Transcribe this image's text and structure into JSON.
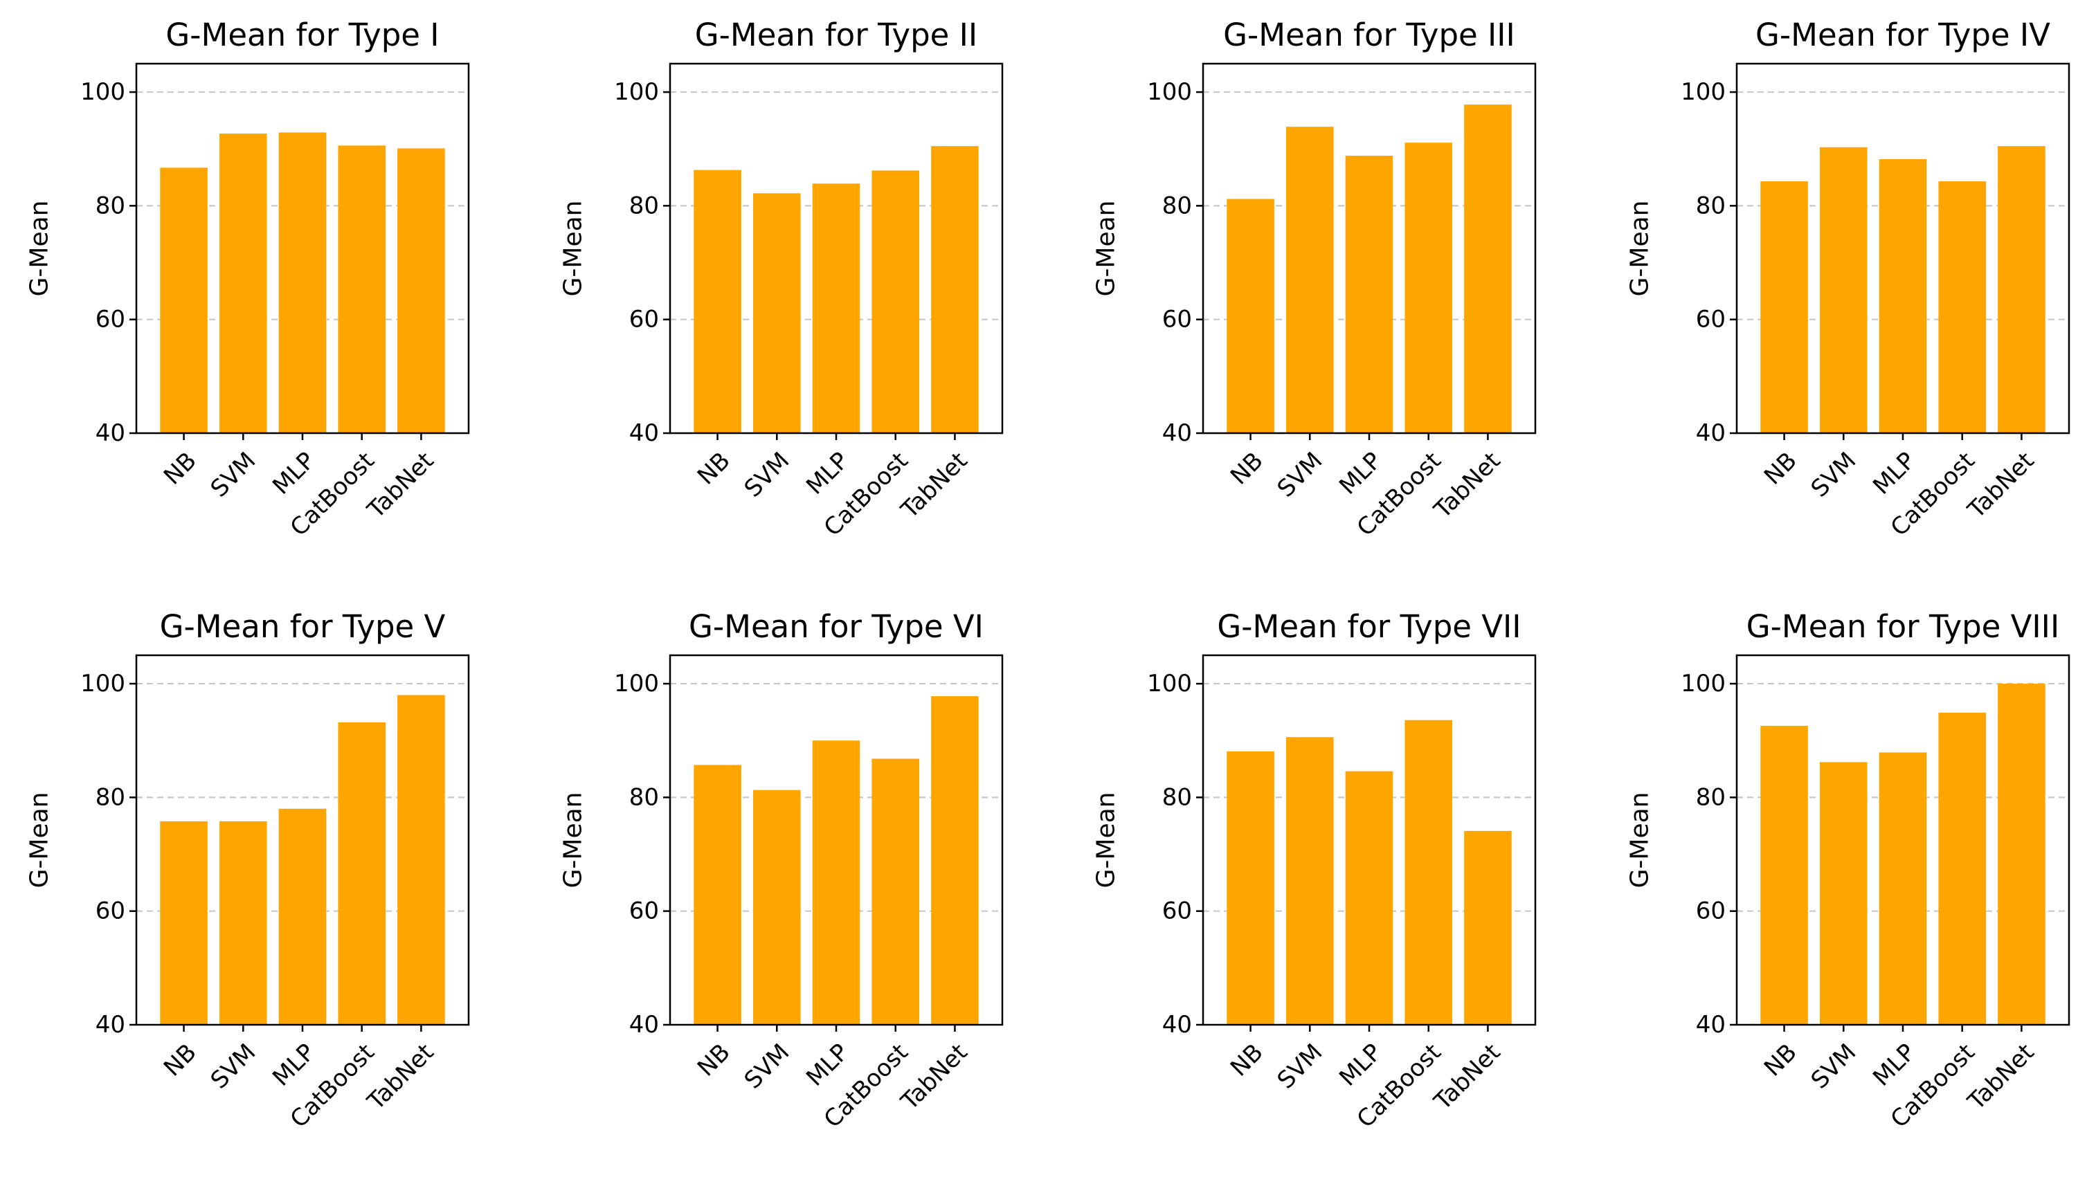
{
  "figure": {
    "style": {
      "bar_color": "#FFA500",
      "grid_color": "#c8c8c8",
      "axis_color": "#000000",
      "background": "#ffffff"
    }
  },
  "chart_data": [
    {
      "type": "bar",
      "title": "G-Mean for Type I",
      "xlabel": "",
      "ylabel": "G-Mean",
      "categories": [
        "NB",
        "SVM",
        "MLP",
        "CatBoost",
        "TabNet"
      ],
      "values": [
        86.7,
        92.7,
        92.9,
        90.6,
        90.1
      ],
      "ylim": [
        40,
        105
      ],
      "yticks": [
        40,
        60,
        80,
        100
      ],
      "grid": "y-dashed",
      "legend": "none"
    },
    {
      "type": "bar",
      "title": "G-Mean for Type II",
      "xlabel": "",
      "ylabel": "G-Mean",
      "categories": [
        "NB",
        "SVM",
        "MLP",
        "CatBoost",
        "TabNet"
      ],
      "values": [
        86.3,
        82.2,
        83.9,
        86.2,
        90.5
      ],
      "ylim": [
        40,
        105
      ],
      "yticks": [
        40,
        60,
        80,
        100
      ],
      "grid": "y-dashed",
      "legend": "none"
    },
    {
      "type": "bar",
      "title": "G-Mean for Type III",
      "xlabel": "",
      "ylabel": "G-Mean",
      "categories": [
        "NB",
        "SVM",
        "MLP",
        "CatBoost",
        "TabNet"
      ],
      "values": [
        81.2,
        93.9,
        88.8,
        91.1,
        97.8
      ],
      "ylim": [
        40,
        105
      ],
      "yticks": [
        40,
        60,
        80,
        100
      ],
      "grid": "y-dashed",
      "legend": "none"
    },
    {
      "type": "bar",
      "title": "G-Mean for Type IV",
      "xlabel": "",
      "ylabel": "G-Mean",
      "categories": [
        "NB",
        "SVM",
        "MLP",
        "CatBoost",
        "TabNet"
      ],
      "values": [
        84.3,
        90.3,
        88.2,
        84.3,
        90.5
      ],
      "ylim": [
        40,
        105
      ],
      "yticks": [
        40,
        60,
        80,
        100
      ],
      "grid": "y-dashed",
      "legend": "none"
    },
    {
      "type": "bar",
      "title": "G-Mean for Type V",
      "xlabel": "",
      "ylabel": "G-Mean",
      "categories": [
        "NB",
        "SVM",
        "MLP",
        "CatBoost",
        "TabNet"
      ],
      "values": [
        75.8,
        75.8,
        78.0,
        93.2,
        98.0
      ],
      "ylim": [
        40,
        105
      ],
      "yticks": [
        40,
        60,
        80,
        100
      ],
      "grid": "y-dashed",
      "legend": "none"
    },
    {
      "type": "bar",
      "title": "G-Mean for Type VI",
      "xlabel": "",
      "ylabel": "G-Mean",
      "categories": [
        "NB",
        "SVM",
        "MLP",
        "CatBoost",
        "TabNet"
      ],
      "values": [
        85.7,
        81.3,
        90.0,
        86.8,
        97.8
      ],
      "ylim": [
        40,
        105
      ],
      "yticks": [
        40,
        60,
        80,
        100
      ],
      "grid": "y-dashed",
      "legend": "none"
    },
    {
      "type": "bar",
      "title": "G-Mean for Type VII",
      "xlabel": "",
      "ylabel": "G-Mean",
      "categories": [
        "NB",
        "SVM",
        "MLP",
        "CatBoost",
        "TabNet"
      ],
      "values": [
        88.1,
        90.6,
        84.6,
        93.6,
        74.1
      ],
      "ylim": [
        40,
        105
      ],
      "yticks": [
        40,
        60,
        80,
        100
      ],
      "grid": "y-dashed",
      "legend": "none"
    },
    {
      "type": "bar",
      "title": "G-Mean for Type VIII",
      "xlabel": "",
      "ylabel": "G-Mean",
      "categories": [
        "NB",
        "SVM",
        "MLP",
        "CatBoost",
        "TabNet"
      ],
      "values": [
        92.6,
        86.2,
        87.9,
        94.9,
        100.0
      ],
      "ylim": [
        40,
        105
      ],
      "yticks": [
        40,
        60,
        80,
        100
      ],
      "grid": "y-dashed",
      "legend": "none"
    }
  ]
}
